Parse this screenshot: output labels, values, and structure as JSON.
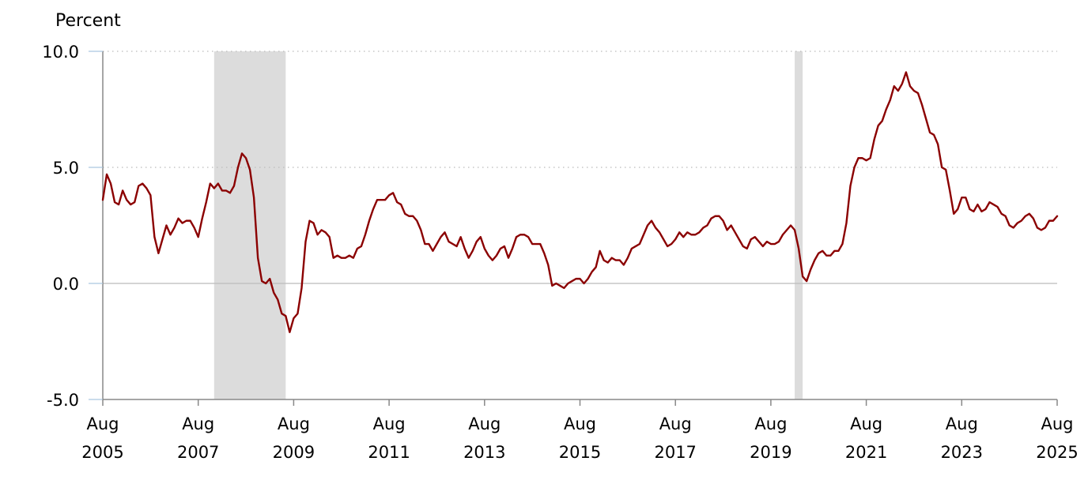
{
  "chart_data": {
    "type": "line",
    "ylabel": "Percent",
    "ylim": [
      -5,
      10
    ],
    "y_ticks": [
      {
        "value": 10,
        "label": "10.0",
        "grid": "dotted"
      },
      {
        "value": 5,
        "label": "5.0",
        "grid": "dotted"
      },
      {
        "value": 0,
        "label": "0.0",
        "grid": "solid"
      },
      {
        "value": -5,
        "label": "-5.0",
        "grid": "none"
      }
    ],
    "xlim": [
      "2005-08",
      "2025-08"
    ],
    "x_ticks": [
      {
        "date": "2005-08",
        "month": "Aug",
        "year": "2005"
      },
      {
        "date": "2007-08",
        "month": "Aug",
        "year": "2007"
      },
      {
        "date": "2009-08",
        "month": "Aug",
        "year": "2009"
      },
      {
        "date": "2011-08",
        "month": "Aug",
        "year": "2011"
      },
      {
        "date": "2013-08",
        "month": "Aug",
        "year": "2013"
      },
      {
        "date": "2015-08",
        "month": "Aug",
        "year": "2015"
      },
      {
        "date": "2017-08",
        "month": "Aug",
        "year": "2017"
      },
      {
        "date": "2019-08",
        "month": "Aug",
        "year": "2019"
      },
      {
        "date": "2021-08",
        "month": "Aug",
        "year": "2021"
      },
      {
        "date": "2023-08",
        "month": "Aug",
        "year": "2023"
      },
      {
        "date": "2025-08",
        "month": "Aug",
        "year": "2025"
      }
    ],
    "shaded_regions": [
      {
        "start": "2007-12",
        "end": "2009-06"
      },
      {
        "start": "2020-02",
        "end": "2020-04"
      }
    ],
    "grid": true,
    "legend": "none",
    "colors": {
      "line": "#8b0000",
      "shade": "#dcdcdc",
      "grid": "#bbbbbb",
      "axis": "#888888",
      "zero_line": "#bbbbbb"
    },
    "series": [
      {
        "start": "2005-08",
        "frequency": "monthly",
        "values": [
          3.6,
          4.7,
          4.3,
          3.5,
          3.4,
          4.0,
          3.6,
          3.4,
          3.5,
          4.2,
          4.3,
          4.1,
          3.8,
          2.0,
          1.3,
          1.9,
          2.5,
          2.1,
          2.4,
          2.8,
          2.6,
          2.7,
          2.7,
          2.4,
          2.0,
          2.8,
          3.5,
          4.3,
          4.1,
          4.3,
          4.0,
          4.0,
          3.9,
          4.2,
          5.0,
          5.6,
          5.4,
          4.9,
          3.7,
          1.1,
          0.1,
          0.0,
          0.2,
          -0.4,
          -0.7,
          -1.3,
          -1.4,
          -2.1,
          -1.5,
          -1.3,
          -0.2,
          1.8,
          2.7,
          2.6,
          2.1,
          2.3,
          2.2,
          2.0,
          1.1,
          1.2,
          1.1,
          1.1,
          1.2,
          1.1,
          1.5,
          1.6,
          2.1,
          2.7,
          3.2,
          3.6,
          3.6,
          3.6,
          3.8,
          3.9,
          3.5,
          3.4,
          3.0,
          2.9,
          2.9,
          2.7,
          2.3,
          1.7,
          1.7,
          1.4,
          1.7,
          2.0,
          2.2,
          1.8,
          1.7,
          1.6,
          2.0,
          1.5,
          1.1,
          1.4,
          1.8,
          2.0,
          1.5,
          1.2,
          1.0,
          1.2,
          1.5,
          1.6,
          1.1,
          1.5,
          2.0,
          2.1,
          2.1,
          2.0,
          1.7,
          1.7,
          1.7,
          1.3,
          0.8,
          -0.1,
          0.0,
          -0.1,
          -0.2,
          0.0,
          0.1,
          0.2,
          0.2,
          0.0,
          0.2,
          0.5,
          0.7,
          1.4,
          1.0,
          0.9,
          1.1,
          1.0,
          1.0,
          0.8,
          1.1,
          1.5,
          1.6,
          1.7,
          2.1,
          2.5,
          2.7,
          2.4,
          2.2,
          1.9,
          1.6,
          1.7,
          1.9,
          2.2,
          2.0,
          2.2,
          2.1,
          2.1,
          2.2,
          2.4,
          2.5,
          2.8,
          2.9,
          2.9,
          2.7,
          2.3,
          2.5,
          2.2,
          1.9,
          1.6,
          1.5,
          1.9,
          2.0,
          1.8,
          1.6,
          1.8,
          1.7,
          1.7,
          1.8,
          2.1,
          2.3,
          2.5,
          2.3,
          1.5,
          0.3,
          0.1,
          0.6,
          1.0,
          1.3,
          1.4,
          1.2,
          1.2,
          1.4,
          1.4,
          1.7,
          2.6,
          4.2,
          5.0,
          5.4,
          5.4,
          5.3,
          5.4,
          6.2,
          6.8,
          7.0,
          7.5,
          7.9,
          8.5,
          8.3,
          8.6,
          9.1,
          8.5,
          8.3,
          8.2,
          7.7,
          7.1,
          6.5,
          6.4,
          6.0,
          5.0,
          4.9,
          4.0,
          3.0,
          3.2,
          3.7,
          3.7,
          3.2,
          3.1,
          3.4,
          3.1,
          3.2,
          3.5,
          3.4,
          3.3,
          3.0,
          2.9,
          2.5,
          2.4,
          2.6,
          2.7,
          2.9,
          3.0,
          2.8,
          2.4,
          2.3,
          2.4,
          2.7,
          2.7,
          2.9
        ]
      }
    ]
  }
}
